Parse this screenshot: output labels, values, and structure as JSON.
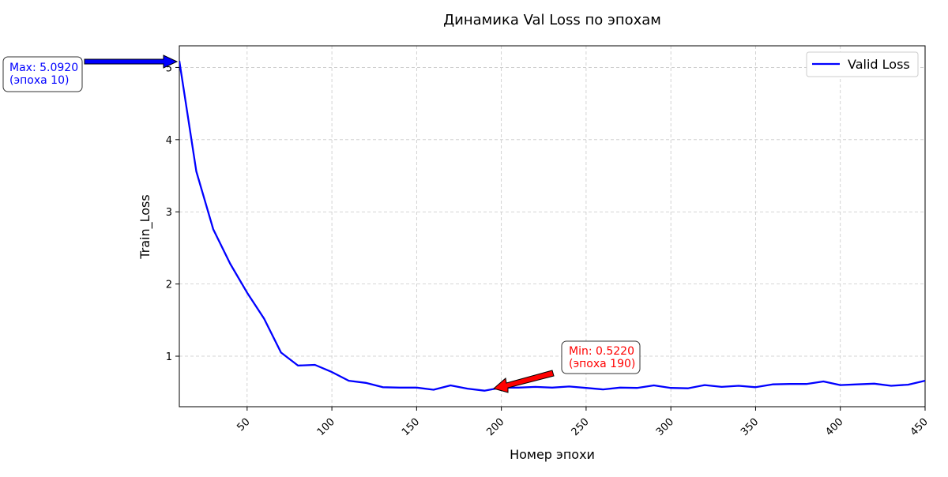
{
  "chart_data": {
    "type": "line",
    "title": "Динамика Val Loss по эпохам",
    "xlabel": "Номер эпохи",
    "ylabel": "Train_Loss",
    "xlim": [
      10,
      450
    ],
    "ylim": [
      0.3,
      5.3
    ],
    "x_ticks": [
      50,
      100,
      150,
      200,
      250,
      300,
      350,
      400,
      450
    ],
    "y_ticks": [
      1,
      2,
      3,
      4,
      5
    ],
    "grid": true,
    "legend_position": "top-right",
    "colors": {
      "line": "#0000ff",
      "max_arrow": "#0000ff",
      "min_arrow": "#ff0000",
      "grid": "#c8c8c8"
    },
    "series": [
      {
        "name": "Valid Loss",
        "x": [
          10,
          20,
          30,
          40,
          50,
          60,
          70,
          80,
          90,
          100,
          110,
          120,
          130,
          140,
          150,
          160,
          170,
          180,
          190,
          200,
          210,
          220,
          230,
          240,
          250,
          260,
          270,
          280,
          290,
          300,
          310,
          320,
          330,
          340,
          350,
          360,
          370,
          380,
          390,
          400,
          410,
          420,
          430,
          440,
          450
        ],
        "y": [
          5.092,
          3.56,
          2.76,
          2.28,
          1.88,
          1.52,
          1.05,
          0.87,
          0.88,
          0.78,
          0.66,
          0.63,
          0.57,
          0.565,
          0.565,
          0.535,
          0.595,
          0.55,
          0.522,
          0.565,
          0.565,
          0.575,
          0.565,
          0.58,
          0.56,
          0.54,
          0.565,
          0.56,
          0.595,
          0.56,
          0.555,
          0.6,
          0.575,
          0.59,
          0.57,
          0.61,
          0.615,
          0.615,
          0.65,
          0.6,
          0.61,
          0.62,
          0.59,
          0.605,
          0.66
        ]
      }
    ],
    "annotations": {
      "max": {
        "line1": "Max: 5.0920",
        "line2": "(эпоха 10)",
        "x": 10,
        "y": 5.092
      },
      "min": {
        "line1": "Min: 0.5220",
        "line2": "(эпоха 190)",
        "x": 190,
        "y": 0.522
      }
    }
  }
}
